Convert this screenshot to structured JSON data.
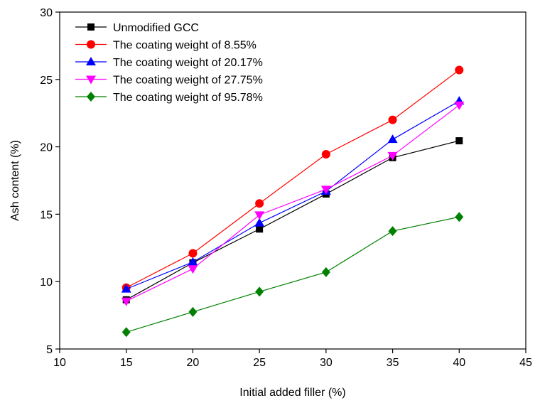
{
  "chart_data": {
    "type": "line",
    "xlabel": "Initial added filler (%)",
    "ylabel": "Ash content (%)",
    "xlim": [
      10,
      45
    ],
    "ylim": [
      5,
      30
    ],
    "xticks": [
      10,
      15,
      20,
      25,
      30,
      35,
      40,
      45
    ],
    "yticks": [
      5,
      10,
      15,
      20,
      25,
      30
    ],
    "grid": false,
    "legend_position": "top-left",
    "x": [
      15,
      20,
      25,
      30,
      35,
      40
    ],
    "series": [
      {
        "name": "Unmodified GCC",
        "color": "#000000",
        "marker": "square",
        "values": [
          8.65,
          11.4,
          13.9,
          16.5,
          19.2,
          20.45
        ]
      },
      {
        "name": "The coating weight of 8.55%",
        "color": "#ff0000",
        "marker": "circle",
        "values": [
          9.55,
          12.1,
          15.8,
          19.45,
          22.0,
          25.7
        ]
      },
      {
        "name": "The coating weight of 20.17%",
        "color": "#0000ff",
        "marker": "triangle-up",
        "values": [
          9.45,
          11.45,
          14.35,
          16.7,
          20.55,
          23.4
        ]
      },
      {
        "name": "The coating weight of 27.75%",
        "color": "#ff00ff",
        "marker": "triangle-down",
        "values": [
          8.55,
          10.95,
          14.95,
          16.85,
          19.35,
          23.1
        ]
      },
      {
        "name": "The coating weight of 95.78%",
        "color": "#008000",
        "marker": "diamond",
        "values": [
          6.25,
          7.75,
          9.25,
          10.7,
          13.75,
          14.8
        ]
      }
    ]
  }
}
